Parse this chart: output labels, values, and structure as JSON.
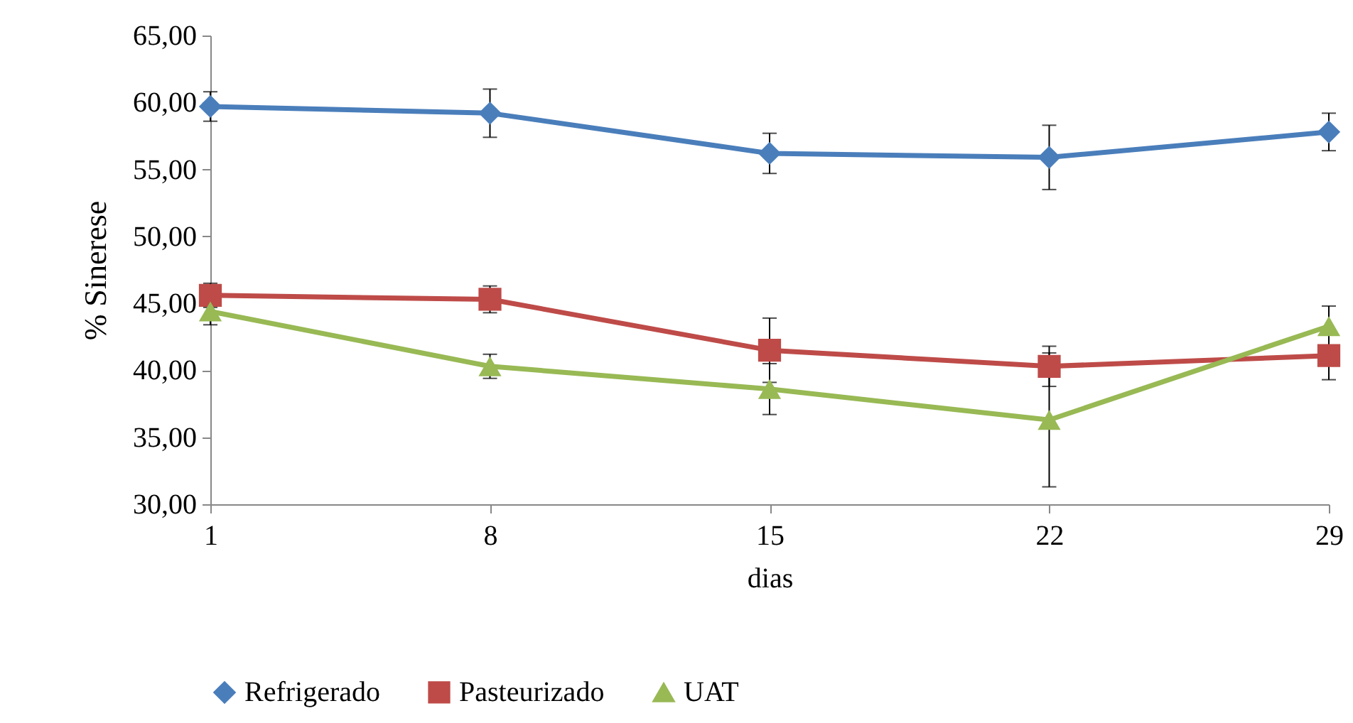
{
  "chart_data": {
    "type": "line",
    "xlabel": "dias",
    "ylabel": "% Sinerese",
    "x": [
      1,
      8,
      15,
      22,
      29
    ],
    "xlim": [
      1,
      29
    ],
    "xticks": [
      1,
      8,
      15,
      22,
      29
    ],
    "ylim": [
      30,
      65
    ],
    "yticks": [
      {
        "value": 30,
        "label": "30,00"
      },
      {
        "value": 35,
        "label": "35,00"
      },
      {
        "value": 40,
        "label": "40,00"
      },
      {
        "value": 45,
        "label": "45,00"
      },
      {
        "value": 50,
        "label": "50,00"
      },
      {
        "value": 55,
        "label": "55,00"
      },
      {
        "value": 60,
        "label": "60,00"
      },
      {
        "value": 65,
        "label": "65,00"
      }
    ],
    "grid": false,
    "legend": "bottom",
    "line_style": "solid",
    "series": [
      {
        "name": "Refrigerado",
        "color": "#4a7ebb",
        "marker": "diamond",
        "values": [
          59.7,
          59.2,
          56.2,
          55.9,
          57.8
        ],
        "errors": [
          1.1,
          1.8,
          1.5,
          2.4,
          1.4
        ]
      },
      {
        "name": "Pasteurizado",
        "color": "#be4b48",
        "marker": "square",
        "values": [
          45.6,
          45.3,
          41.5,
          40.3,
          41.1
        ],
        "errors": [
          0.9,
          1.0,
          2.4,
          1.5,
          1.8
        ]
      },
      {
        "name": "UAT",
        "color": "#98b954",
        "marker": "triangle",
        "values": [
          44.4,
          40.3,
          38.6,
          36.3,
          43.3
        ],
        "errors": [
          1.0,
          0.9,
          1.9,
          5.0,
          1.5
        ]
      }
    ]
  }
}
